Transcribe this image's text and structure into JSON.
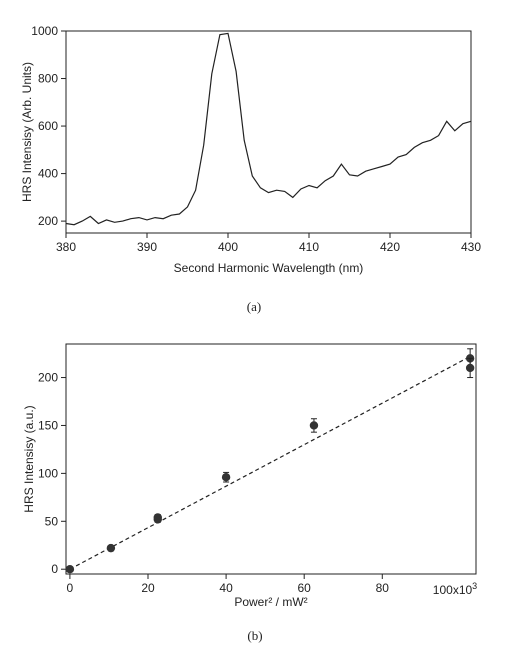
{
  "chart_data": [
    {
      "type": "line",
      "panel_label": "(a)",
      "xlabel": "Second Harmonic Wavelength (nm)",
      "ylabel": "HRS Intensisy (Arb. Units)",
      "xlim": [
        380,
        430
      ],
      "ylim": [
        150,
        1000
      ],
      "xticks": [
        380,
        390,
        400,
        410,
        420,
        430
      ],
      "yticks": [
        200,
        400,
        600,
        800,
        1000
      ],
      "grid": false,
      "series": [
        {
          "x": [
            380,
            381,
            382,
            383,
            384,
            385,
            386,
            387,
            388,
            389,
            390,
            391,
            392,
            393,
            394,
            395,
            396,
            397,
            398,
            399,
            400,
            401,
            402,
            403,
            404,
            405,
            406,
            407,
            408,
            409,
            410,
            411,
            412,
            413,
            414,
            415,
            416,
            417,
            418,
            419,
            420,
            421,
            422,
            423,
            424,
            425,
            426,
            427,
            428,
            429,
            430
          ],
          "y": [
            190,
            185,
            200,
            220,
            190,
            205,
            195,
            200,
            210,
            215,
            205,
            215,
            210,
            225,
            230,
            260,
            330,
            520,
            820,
            985,
            990,
            830,
            540,
            390,
            340,
            320,
            330,
            325,
            300,
            335,
            350,
            340,
            370,
            390,
            440,
            395,
            390,
            410,
            420,
            430,
            440,
            470,
            480,
            510,
            530,
            540,
            560,
            620,
            580,
            610,
            620
          ]
        }
      ]
    },
    {
      "type": "scatter",
      "panel_label": "(b)",
      "xlabel": "Power² / mW²",
      "ylabel": "HRS Intensisy (a.u.)",
      "x_multiplier_label": "100x10",
      "x_multiplier_exp": "3",
      "xlim": [
        -1,
        104
      ],
      "ylim": [
        -5,
        235
      ],
      "xticks": [
        0,
        20,
        40,
        60,
        80
      ],
      "yticks": [
        0,
        50,
        100,
        150,
        200
      ],
      "grid": false,
      "points": [
        {
          "x": 0,
          "y": 0,
          "err": 2
        },
        {
          "x": 10.5,
          "y": 22,
          "err": 2
        },
        {
          "x": 22.5,
          "y": 52,
          "err": 3
        },
        {
          "x": 22.5,
          "y": 54,
          "err": 3
        },
        {
          "x": 40,
          "y": 96,
          "err": 5
        },
        {
          "x": 62.5,
          "y": 150,
          "err": 7
        },
        {
          "x": 102.5,
          "y": 220,
          "err": 10
        },
        {
          "x": 102.5,
          "y": 210,
          "err": 10
        }
      ],
      "fit": {
        "style": "dashed",
        "x": [
          0,
          102.5
        ],
        "y": [
          0,
          222
        ]
      }
    }
  ]
}
